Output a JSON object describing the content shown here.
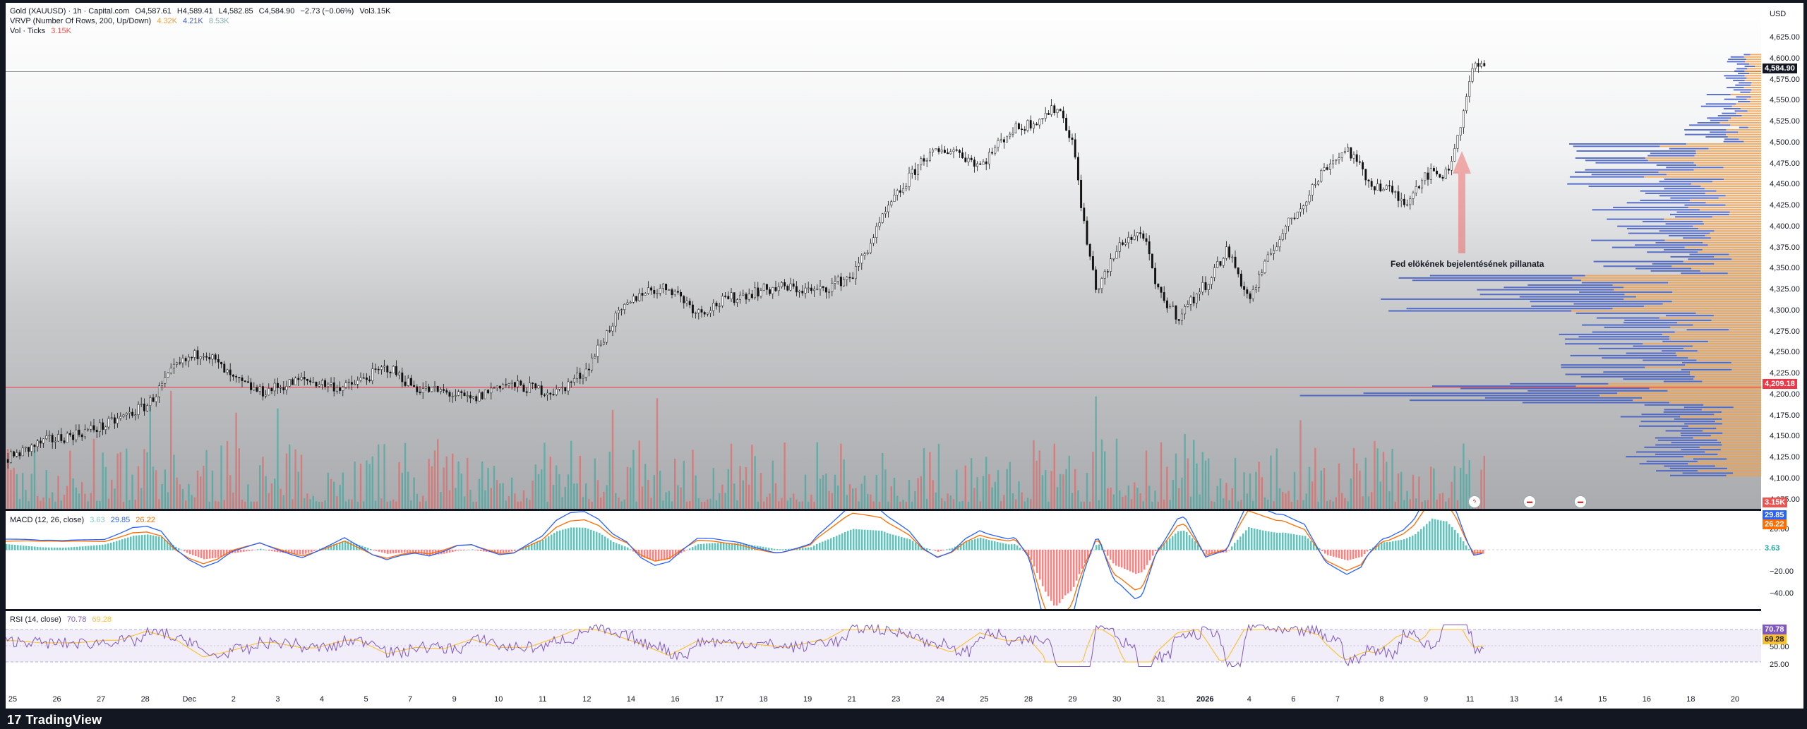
{
  "legend": {
    "symbol": "Gold (XAUUSD) · 1h · Capital.com",
    "open": "O4,587.61",
    "high": "H4,589.41",
    "low": "L4,582.85",
    "close": "C4,584.90",
    "change": "−2.73 (−0.06%)",
    "vol": "Vol3.15K",
    "vrvp_title": "VRVP (Number Of Rows, 200, Up/Down)",
    "vrvp_v1": "4.32K",
    "vrvp_v2": "4.21K",
    "vrvp_v3": "8.53K",
    "vol_title": "Vol · Ticks",
    "vol_value": "3.15K"
  },
  "currency": "USD",
  "price_ticks": [
    "4,625.00",
    "4,600.00",
    "4,575.00",
    "4,550.00",
    "4,525.00",
    "4,500.00",
    "4,475.00",
    "4,450.00",
    "4,425.00",
    "4,400.00",
    "4,375.00",
    "4,350.00",
    "4,325.00",
    "4,300.00",
    "4,275.00",
    "4,250.00",
    "4,225.00",
    "4,200.00",
    "4,175.00",
    "4,150.00",
    "4,125.00",
    "4,100.00",
    "4,075.00"
  ],
  "price_tags": {
    "last": "4,584.90",
    "level": "4,209.18",
    "volume": "3.15K"
  },
  "annotation": "Fed elökének bejelentésének pillanata",
  "macd": {
    "title": "MACD (12, 26, close)",
    "hist": "3.63",
    "macd": "29.85",
    "signal": "26.22",
    "ticks": [
      "20.00",
      "−20.00",
      "−40.00"
    ],
    "tag_macd": "29.85",
    "tag_signal": "26.22",
    "tag_hist": "3.63"
  },
  "rsi": {
    "title": "RSI (14, close)",
    "value": "70.78",
    "ma": "69.28",
    "ticks": [
      "50.00",
      "25.00"
    ],
    "tag_rsi": "70.78",
    "tag_ma": "69.28"
  },
  "time_labels": [
    "25",
    "26",
    "27",
    "28",
    "Dec",
    "2",
    "3",
    "4",
    "5",
    "7",
    "9",
    "10",
    "11",
    "12",
    "14",
    "16",
    "17",
    "18",
    "19",
    "21",
    "23",
    "24",
    "25",
    "28",
    "29",
    "30",
    "31",
    "2026",
    "4",
    "6",
    "7",
    "8",
    "9",
    "11",
    "13",
    "14",
    "15",
    "16",
    "18",
    "20"
  ],
  "brand": "TradingView",
  "colors": {
    "up": "#26a69a",
    "down": "#ef5350",
    "vp_up": "#f0a04b",
    "vp_down": "#3f5bc4",
    "level": "#f23645",
    "macd": "#2962ff",
    "signal": "#ff6d00",
    "rsi": "#7e57c2",
    "rsi_ma": "#fbc02d"
  }
}
